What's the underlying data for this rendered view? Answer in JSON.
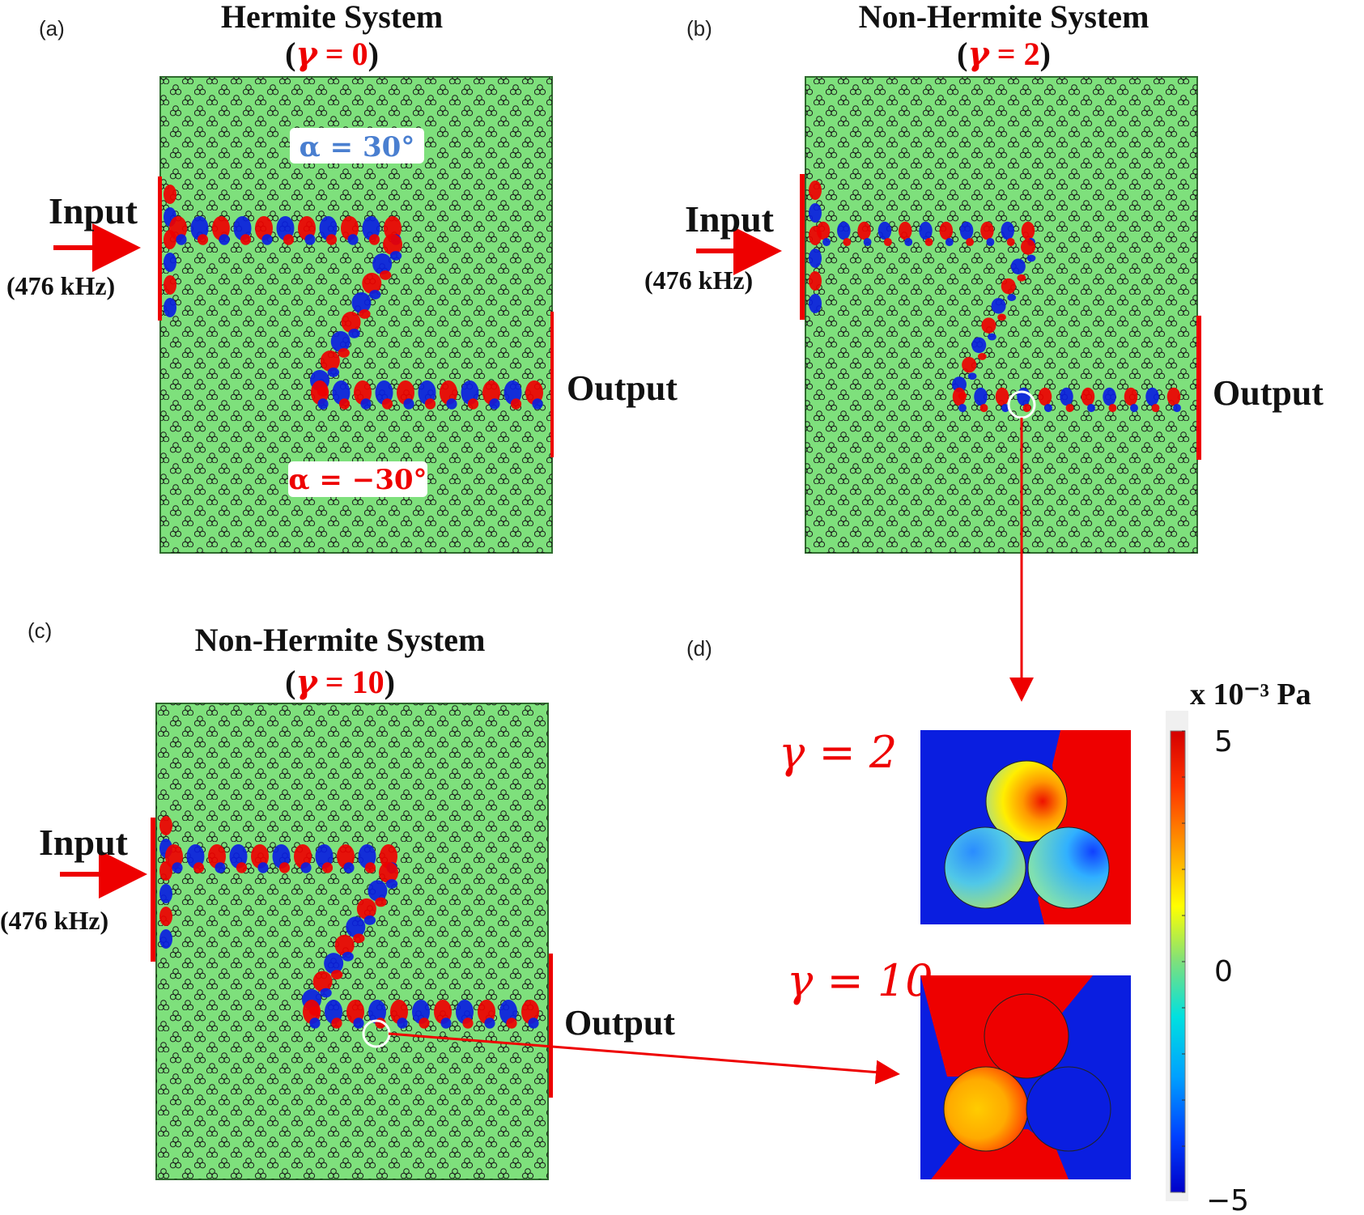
{
  "panel_a": {
    "tag": "(a)",
    "title": "Hermite System",
    "paren_open": "(",
    "gamma_symbol": "γ",
    "gamma_eq": " = 0",
    "paren_close": ")",
    "input_label": "Input",
    "freq_label": "(476 kHz)",
    "output_label": "Output",
    "alpha_top": "α = 30°",
    "alpha_bottom": "α = −30°"
  },
  "panel_b": {
    "tag": "(b)",
    "title": "Non-Hermite System",
    "paren_open": "(",
    "gamma_symbol": "γ",
    "gamma_eq": " = 2",
    "paren_close": ")",
    "input_label": "Input",
    "freq_label": "(476 kHz)",
    "output_label": "Output"
  },
  "panel_c": {
    "tag": "(c)",
    "title": "Non-Hermite System",
    "paren_open": "(",
    "gamma_symbol": "γ",
    "gamma_eq": " = 10",
    "paren_close": ")",
    "input_label": "Input",
    "freq_label": "(476 kHz)",
    "output_label": "Output"
  },
  "panel_d": {
    "tag": "(d)",
    "inset_top_label": "γ = 2",
    "inset_bottom_label": "γ = 10"
  },
  "colorbar": {
    "unit_label": "x 10⁻³ Pa",
    "max_label": "5",
    "mid_label": "0",
    "min_label": "−5"
  },
  "colors": {
    "field_background": "#7ee07c",
    "positive": "#ee0000",
    "negative": "#0a1ee0",
    "accent_red": "#ee0000",
    "alpha_blue": "#4a7fd0"
  }
}
